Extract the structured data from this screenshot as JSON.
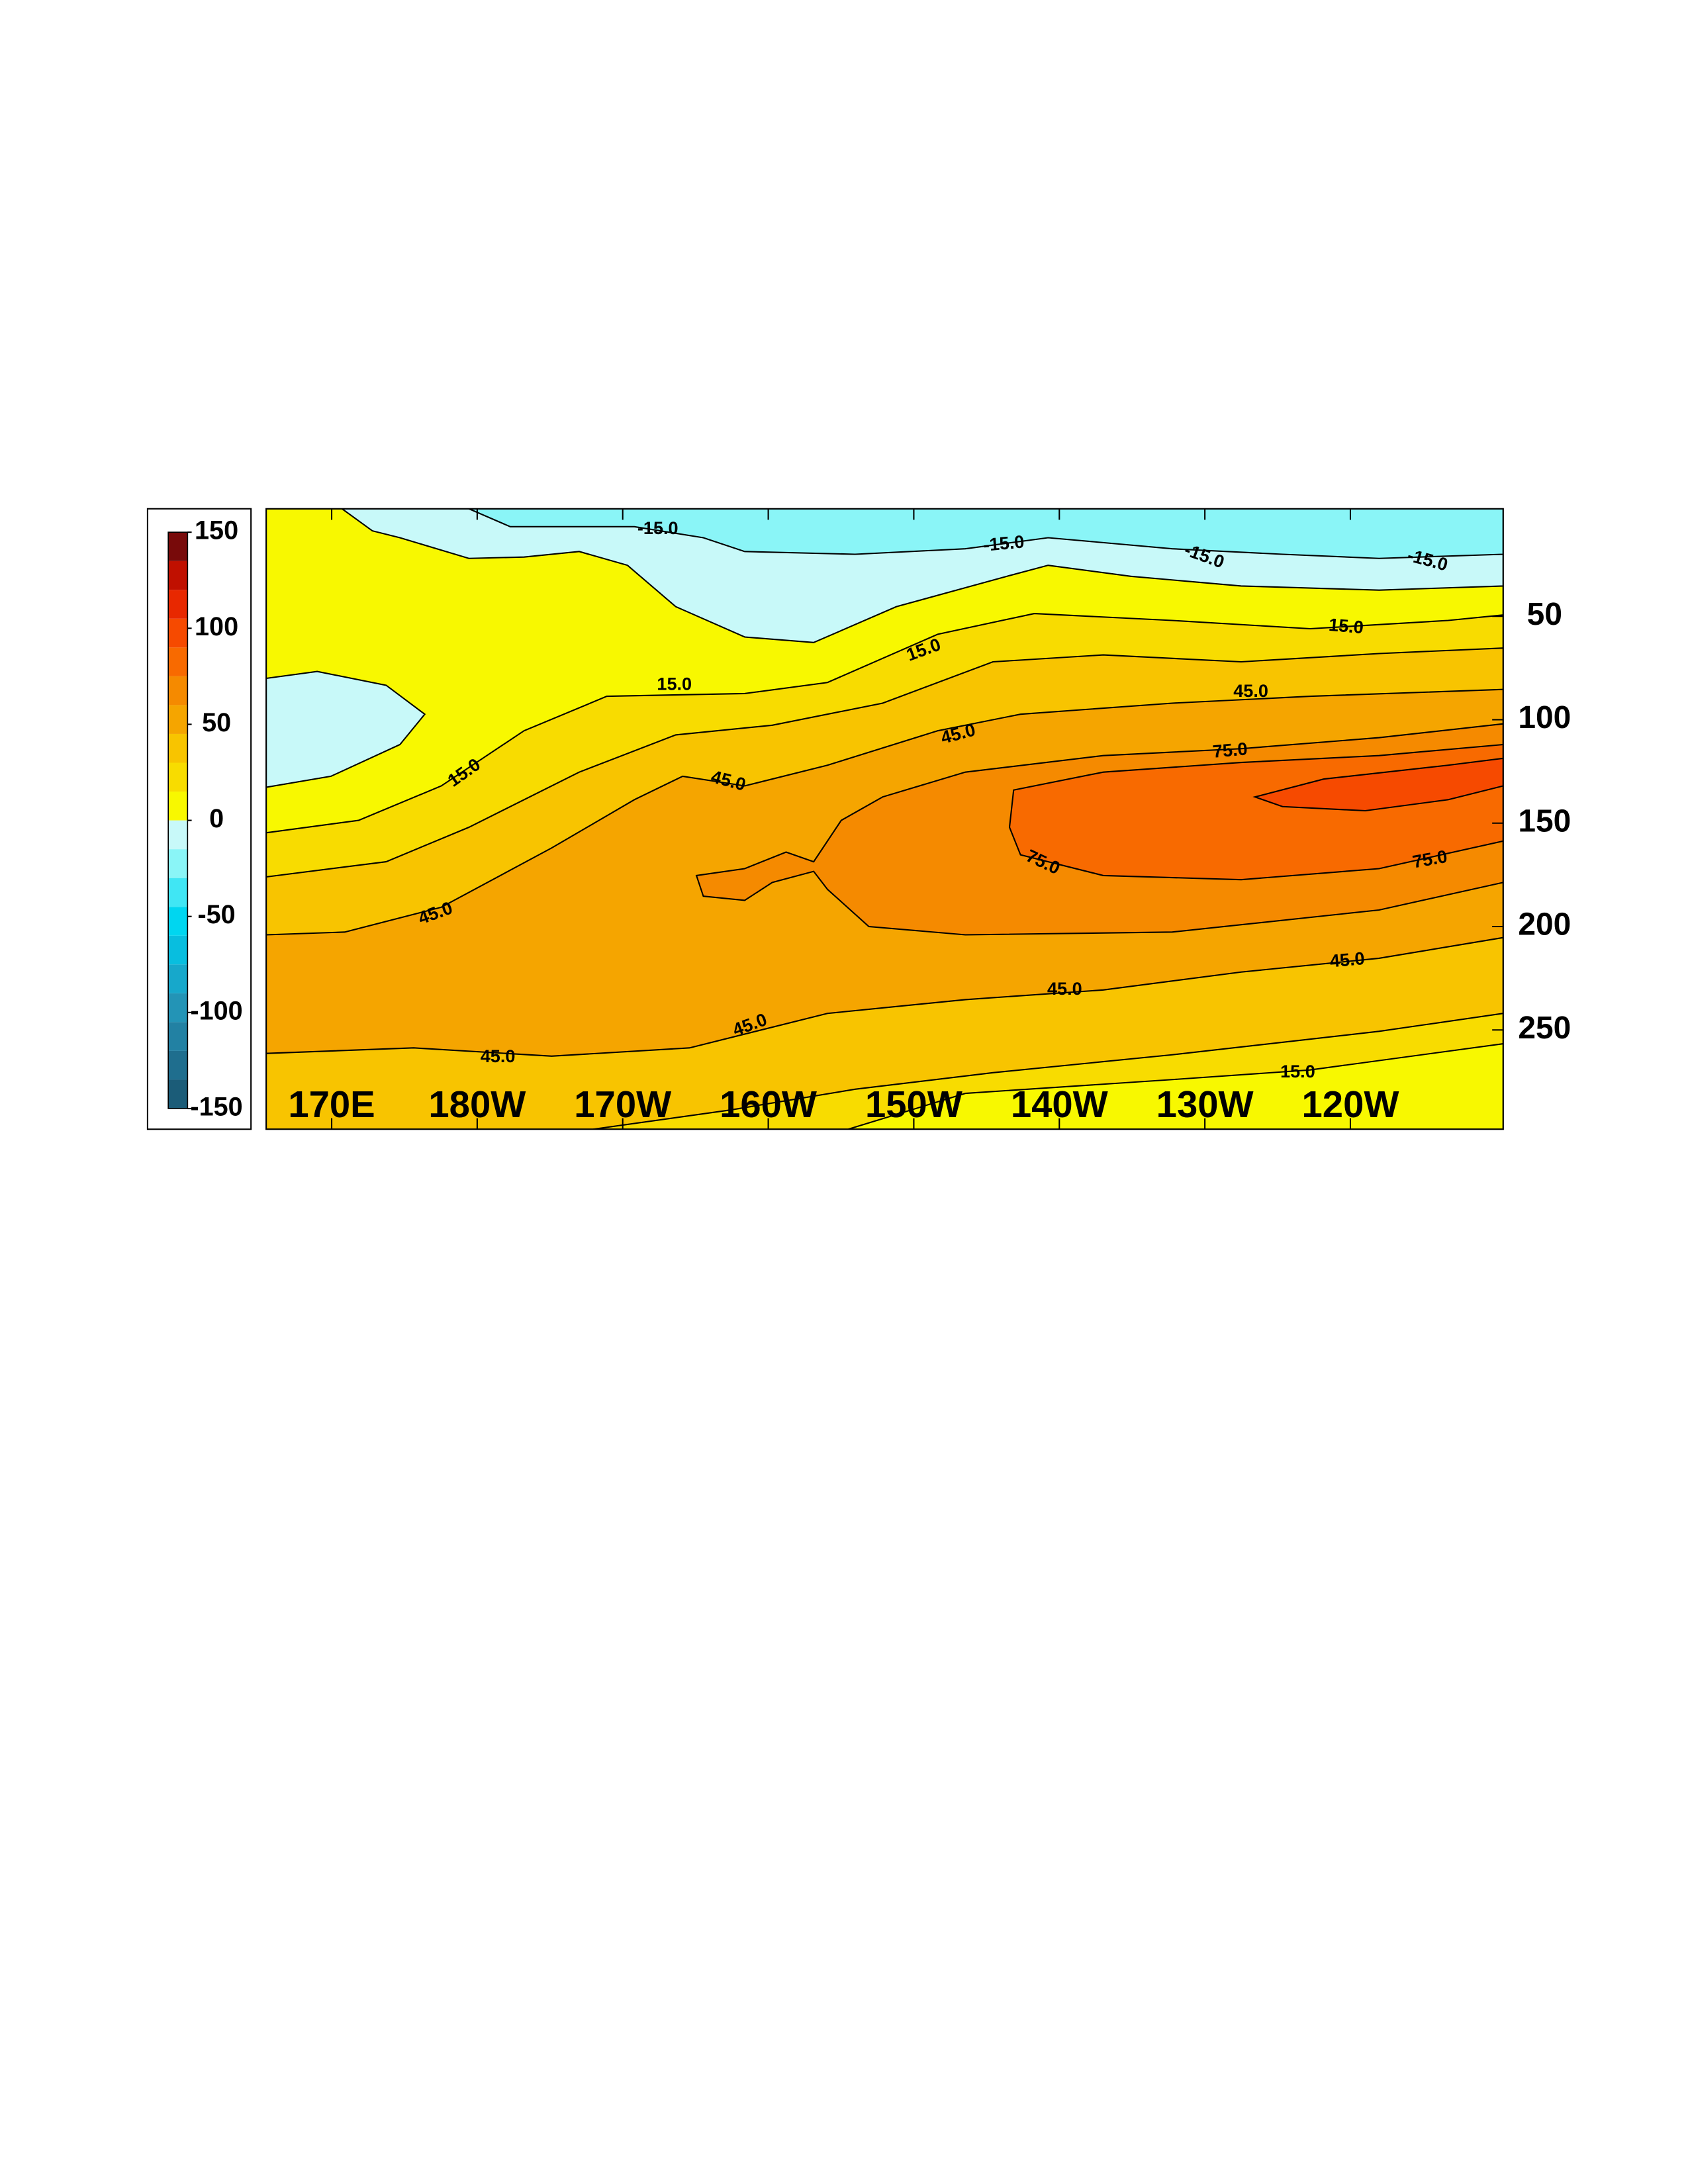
{
  "chart_data": {
    "type": "contour",
    "xlim": [
      165.5,
      250.5
    ],
    "xticks": [
      {
        "value": 170,
        "label": "170E"
      },
      {
        "value": 180,
        "label": "180W"
      },
      {
        "value": 190,
        "label": "170W"
      },
      {
        "value": 200,
        "label": "160W"
      },
      {
        "value": 210,
        "label": "150W"
      },
      {
        "value": 220,
        "label": "140W"
      },
      {
        "value": 230,
        "label": "130W"
      },
      {
        "value": 240,
        "label": "120W"
      }
    ],
    "ylim": [
      -2,
      298
    ],
    "yticks": [
      50,
      100,
      150,
      200,
      250
    ],
    "y_inverted": true,
    "levels": [
      -150,
      -135,
      -120,
      -105,
      -90,
      -75,
      -60,
      -45,
      -30,
      -15,
      0,
      15,
      30,
      45,
      60,
      75,
      90,
      105,
      120,
      135,
      150
    ],
    "colors": [
      "#1b5c78",
      "#1f6e8e",
      "#2281a3",
      "#2394b6",
      "#17a8cb",
      "#08bedf",
      "#00d6f0",
      "#40e6f4",
      "#8af5f7",
      "#c8f9f9",
      "#f8f800",
      "#f8dc00",
      "#f8c400",
      "#f5a500",
      "#f58a00",
      "#f86a00",
      "#f64a00",
      "#e82800",
      "#c01000",
      "#780a0a"
    ],
    "colorbar_ticks": [
      -150,
      -100,
      -50,
      0,
      50,
      100,
      150
    ],
    "contour_labels": [
      {
        "value": -15,
        "label": "-15.0"
      },
      {
        "value": -15,
        "label": "-15.0"
      },
      {
        "value": -15,
        "label": "-15.0"
      },
      {
        "value": -15,
        "label": "-15.0"
      },
      {
        "value": 15,
        "label": "15.0"
      },
      {
        "value": 15,
        "label": "15.0"
      },
      {
        "value": 15,
        "label": "15.0"
      },
      {
        "value": 15,
        "label": "15.0"
      },
      {
        "value": 45,
        "label": "45.0"
      },
      {
        "value": 45,
        "label": "45.0"
      },
      {
        "value": 45,
        "label": "45.0"
      },
      {
        "value": 75,
        "label": "75.0"
      },
      {
        "value": 75,
        "label": "75.0"
      },
      {
        "value": 75,
        "label": "75.0"
      },
      {
        "value": 45,
        "label": "45.0"
      },
      {
        "value": 45,
        "label": "45.0"
      },
      {
        "value": 45,
        "label": "45.0"
      },
      {
        "value": 45,
        "label": "45.0"
      },
      {
        "value": 45,
        "label": "45.0"
      },
      {
        "value": 15,
        "label": "15.0"
      }
    ]
  }
}
